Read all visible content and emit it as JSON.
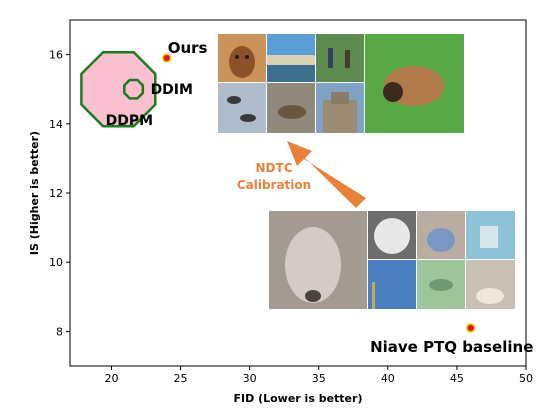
{
  "chart_data": {
    "type": "scatter",
    "title": "",
    "xlabel": "FID (Lower is better)",
    "ylabel": "IS (Higher is better)",
    "xlim": [
      17,
      50
    ],
    "ylim": [
      7,
      17
    ],
    "xticks": [
      20,
      25,
      30,
      35,
      40,
      45,
      50
    ],
    "yticks": [
      8,
      10,
      12,
      14,
      16
    ],
    "grid": false,
    "points": [
      {
        "label": "Ours",
        "x": 24.0,
        "y": 15.9,
        "marker": "circle",
        "fill": "#e41a1c",
        "edge": "#f2d51a"
      },
      {
        "label": "Niave PTQ baseline",
        "x": 46.0,
        "y": 8.1,
        "marker": "circle",
        "fill": "#e41a1c",
        "edge": "#f2d51a"
      },
      {
        "label": "DDPM",
        "x": 20.5,
        "y": 15.0,
        "marker": "octagon",
        "fill": "#f9c1cf",
        "edge": "#1f7a1f"
      },
      {
        "label": "DDIM",
        "x": 21.6,
        "y": 15.0,
        "marker": "octagon",
        "fill": "#f9c1cf",
        "edge": "#1f7a1f"
      }
    ],
    "annotation": {
      "text_line1": "NDTC",
      "text_line2": "Calibration",
      "color": "#e8823a"
    }
  },
  "image_panels": {
    "top_grid": [
      "dog-portrait",
      "beach-scene",
      "people-in-park",
      "birds-on-branch",
      "seal-on-rock",
      "building-facade"
    ],
    "top_large": "insect-closeup",
    "bottom_large": "blurry-dog",
    "bottom_grid": [
      "sphere-object",
      "small-animal",
      "blue-object",
      "birds-in-sky",
      "green-blur",
      "lamp-object"
    ]
  }
}
